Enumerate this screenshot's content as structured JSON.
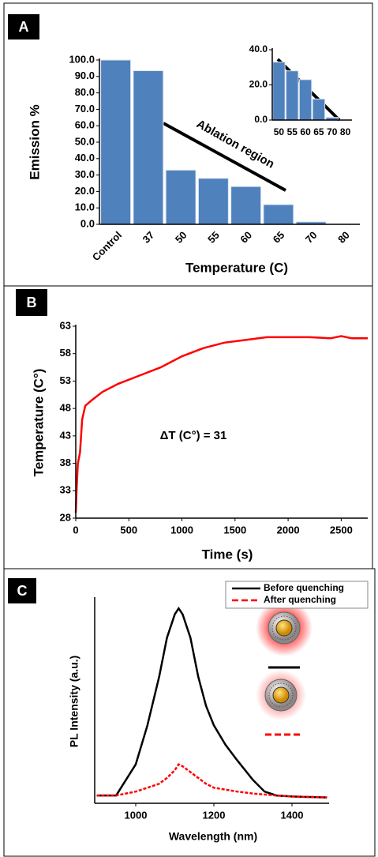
{
  "chart_data": [
    {
      "type": "bar",
      "panel_label": "A",
      "xlabel": "Temperature (C)",
      "ylabel": "Emission %",
      "annotation": "Ablation region",
      "categories": [
        "Control",
        "37",
        "50",
        "55",
        "60",
        "65",
        "70",
        "80"
      ],
      "values": [
        100,
        93.5,
        33,
        28,
        23,
        12,
        1.5,
        0
      ],
      "color": "#4f81bd",
      "ylim": [
        0,
        100
      ],
      "yticks": [
        {
          "value": 0,
          "label": "0.0"
        },
        {
          "value": 10,
          "label": "10.0"
        },
        {
          "value": 20,
          "label": "20.0"
        },
        {
          "value": 30,
          "label": "30.0"
        },
        {
          "value": 40,
          "label": "40.0"
        },
        {
          "value": 50,
          "label": "50.0"
        },
        {
          "value": 60,
          "label": "60.0"
        },
        {
          "value": 70,
          "label": "70.0"
        },
        {
          "value": 80,
          "label": "80.0"
        },
        {
          "value": 90,
          "label": "90.0"
        },
        {
          "value": 100,
          "label": "100.0"
        }
      ]
    },
    {
      "type": "bar",
      "categories": [
        "50",
        "55",
        "60",
        "65",
        "70",
        "80"
      ],
      "values": [
        33,
        28,
        23,
        12,
        1.5,
        0
      ],
      "color": "#4f81bd",
      "ylim": [
        0,
        40
      ],
      "yticks": [
        {
          "value": 0,
          "label": "0.0"
        },
        {
          "value": 20,
          "label": "20.0"
        },
        {
          "value": 40,
          "label": "40.0"
        }
      ]
    },
    {
      "type": "line",
      "panel_label": "B",
      "xlabel": "Time (s)",
      "ylabel": "Temperature (C°)",
      "annotation": "ΔT (C°) = 31",
      "color": "#ff0000",
      "x": [
        0,
        10,
        20,
        40,
        60,
        90,
        150,
        250,
        400,
        600,
        800,
        1000,
        1200,
        1400,
        1600,
        1800,
        2000,
        2200,
        2400,
        2500,
        2600,
        2750
      ],
      "values": [
        29,
        34,
        38,
        40,
        46,
        48.5,
        49.5,
        51,
        52.5,
        54,
        55.5,
        57.5,
        59,
        60,
        60.5,
        61,
        61,
        61,
        60.8,
        61.2,
        60.8,
        60.8
      ],
      "xlim": [
        0,
        2750
      ],
      "xticks": [
        0,
        500,
        1000,
        1500,
        2000,
        2500
      ],
      "ylim": [
        28,
        63
      ],
      "yticks": [
        28,
        33,
        38,
        43,
        48,
        53,
        58,
        63
      ]
    },
    {
      "type": "line",
      "panel_label": "C",
      "xlabel": "Wavelength (nm)",
      "ylabel": "PL Intensity (a.u.)",
      "legend": "upper right",
      "x": [
        900,
        950,
        1000,
        1030,
        1060,
        1080,
        1100,
        1110,
        1120,
        1140,
        1160,
        1180,
        1200,
        1230,
        1260,
        1300,
        1330,
        1360,
        1400,
        1490
      ],
      "series": [
        {
          "name": "Before quenching",
          "color": "#000000",
          "values": [
            0.04,
            0.04,
            0.2,
            0.4,
            0.65,
            0.85,
            0.97,
            1.0,
            0.97,
            0.85,
            0.65,
            0.5,
            0.4,
            0.3,
            0.22,
            0.12,
            0.06,
            0.04,
            0.035,
            0.03
          ]
        },
        {
          "name": "After quenching",
          "color": "#ff0000",
          "values": [
            0.04,
            0.04,
            0.06,
            0.08,
            0.1,
            0.13,
            0.17,
            0.2,
            0.19,
            0.16,
            0.13,
            0.1,
            0.08,
            0.07,
            0.06,
            0.05,
            0.045,
            0.04,
            0.035,
            0.03
          ]
        }
      ],
      "xlim": [
        895,
        1495
      ],
      "xticks": [
        1000,
        1200,
        1400
      ],
      "ylim": [
        0,
        1.05
      ]
    }
  ]
}
